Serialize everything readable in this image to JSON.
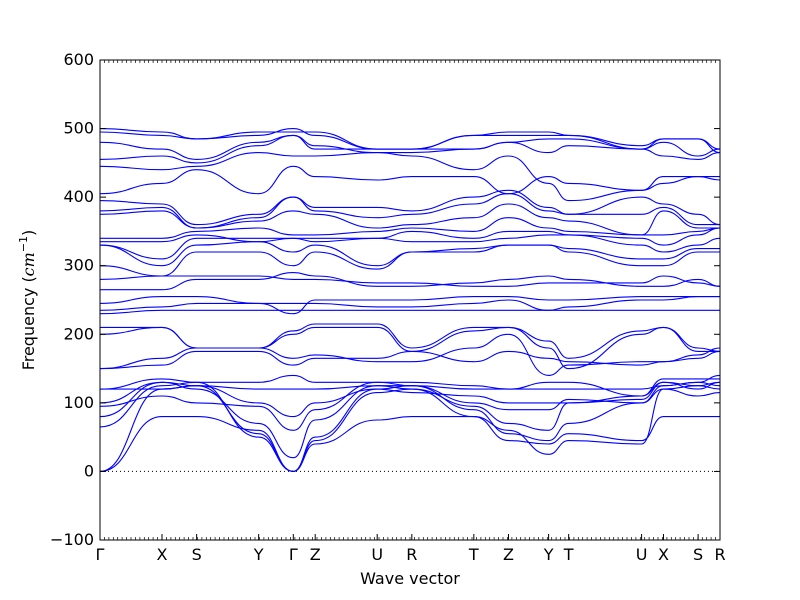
{
  "chart_data": {
    "type": "line",
    "xlabel": "Wave vector",
    "ylabel": "Frequency (cm⁻¹)",
    "ylabel_parts": {
      "text": "Frequency (",
      "unit": "cm",
      "exp": "−1",
      "close": ")"
    },
    "ylim": [
      -100,
      600
    ],
    "yticks": [
      -100,
      0,
      100,
      200,
      300,
      400,
      500,
      600
    ],
    "xlim": [
      0,
      17
    ],
    "high_symmetry_points": [
      {
        "label": "Γ",
        "x": 0
      },
      {
        "label": "X",
        "x": 1.7
      },
      {
        "label": "S",
        "x": 2.65
      },
      {
        "label": "Y",
        "x": 4.35
      },
      {
        "label": "Γ",
        "x": 5.3
      },
      {
        "label": "Z",
        "x": 5.9
      },
      {
        "label": "U",
        "x": 7.6
      },
      {
        "label": "R",
        "x": 8.55
      },
      {
        "label": "T",
        "x": 10.25
      },
      {
        "label": "Z",
        "x": 11.2
      },
      {
        "label": "Y",
        "x": 12.3
      },
      {
        "label": "T",
        "x": 12.85
      },
      {
        "label": "U",
        "x": 14.85
      },
      {
        "label": "X",
        "x": 15.45
      },
      {
        "label": "S",
        "x": 16.4
      },
      {
        "label": "R",
        "x": 17
      }
    ],
    "zero_line": 0,
    "line_color": "#0000ff",
    "series": [
      {
        "values": [
          0,
          80,
          80,
          60,
          0,
          40,
          75,
          80,
          80,
          45,
          40,
          55,
          45,
          80,
          80,
          80
        ]
      },
      {
        "values": [
          0,
          120,
          125,
          55,
          0,
          45,
          115,
          120,
          80,
          60,
          25,
          45,
          40,
          120,
          125,
          120
        ]
      },
      {
        "values": [
          65,
          125,
          130,
          50,
          0,
          50,
          120,
          125,
          90,
          55,
          45,
          70,
          100,
          125,
          130,
          125
        ]
      },
      {
        "values": [
          80,
          130,
          120,
          70,
          20,
          75,
          125,
          120,
          95,
          70,
          60,
          100,
          110,
          130,
          120,
          130
        ]
      },
      {
        "values": [
          95,
          110,
          100,
          95,
          60,
          90,
          130,
          125,
          100,
          90,
          90,
          105,
          100,
          120,
          110,
          115
        ]
      },
      {
        "values": [
          100,
          130,
          125,
          100,
          80,
          100,
          120,
          115,
          110,
          100,
          100,
          100,
          105,
          130,
          125,
          130
        ]
      },
      {
        "values": [
          120,
          120,
          125,
          120,
          120,
          120,
          125,
          125,
          120,
          120,
          120,
          120,
          120,
          125,
          130,
          140
        ]
      },
      {
        "values": [
          120,
          135,
          130,
          130,
          140,
          130,
          130,
          130,
          125,
          120,
          130,
          130,
          110,
          135,
          135,
          135
        ]
      },
      {
        "values": [
          150,
          155,
          175,
          175,
          155,
          165,
          165,
          175,
          160,
          175,
          165,
          160,
          155,
          160,
          165,
          175
        ]
      },
      {
        "values": [
          150,
          165,
          180,
          180,
          165,
          170,
          160,
          160,
          180,
          200,
          140,
          155,
          160,
          160,
          170,
          180
        ]
      },
      {
        "values": [
          200,
          210,
          180,
          180,
          200,
          210,
          210,
          175,
          205,
          210,
          180,
          150,
          200,
          210,
          175,
          175
        ]
      },
      {
        "values": [
          210,
          210,
          180,
          180,
          205,
          215,
          215,
          180,
          210,
          210,
          190,
          165,
          205,
          210,
          180,
          175
        ]
      },
      {
        "values": [
          230,
          235,
          235,
          235,
          235,
          235,
          235,
          235,
          235,
          235,
          235,
          235,
          235,
          235,
          235,
          235
        ]
      },
      {
        "values": [
          235,
          240,
          245,
          245,
          245,
          245,
          240,
          240,
          245,
          250,
          235,
          240,
          250,
          250,
          255,
          255
        ]
      },
      {
        "values": [
          245,
          255,
          255,
          245,
          230,
          250,
          250,
          250,
          255,
          255,
          250,
          250,
          255,
          255,
          255,
          255
        ]
      },
      {
        "values": [
          265,
          265,
          280,
          280,
          290,
          285,
          270,
          270,
          275,
          280,
          285,
          280,
          270,
          270,
          280,
          270
        ]
      },
      {
        "values": [
          280,
          285,
          285,
          285,
          280,
          280,
          275,
          275,
          270,
          270,
          275,
          275,
          275,
          285,
          275,
          270
        ]
      },
      {
        "values": [
          300,
          285,
          320,
          320,
          300,
          320,
          295,
          320,
          325,
          330,
          330,
          320,
          300,
          300,
          320,
          320
        ]
      },
      {
        "values": [
          330,
          300,
          330,
          335,
          320,
          330,
          300,
          320,
          320,
          330,
          330,
          325,
          310,
          310,
          325,
          325
        ]
      },
      {
        "values": [
          330,
          310,
          340,
          340,
          340,
          340,
          340,
          335,
          335,
          340,
          345,
          345,
          330,
          320,
          330,
          340
        ]
      },
      {
        "values": [
          335,
          335,
          345,
          335,
          340,
          335,
          340,
          350,
          340,
          350,
          350,
          345,
          340,
          330,
          345,
          355
        ]
      },
      {
        "values": [
          340,
          340,
          350,
          355,
          345,
          345,
          350,
          355,
          350,
          370,
          355,
          350,
          345,
          345,
          350,
          355
        ]
      },
      {
        "values": [
          375,
          380,
          355,
          365,
          380,
          375,
          355,
          360,
          370,
          390,
          370,
          365,
          345,
          380,
          355,
          355
        ]
      },
      {
        "values": [
          380,
          385,
          355,
          370,
          400,
          380,
          370,
          375,
          390,
          405,
          380,
          375,
          375,
          385,
          360,
          360
        ]
      },
      {
        "values": [
          395,
          390,
          360,
          375,
          400,
          385,
          385,
          380,
          400,
          410,
          385,
          375,
          400,
          390,
          375,
          360
        ]
      },
      {
        "values": [
          405,
          420,
          440,
          405,
          445,
          430,
          425,
          430,
          430,
          405,
          430,
          420,
          410,
          420,
          430,
          425
        ]
      },
      {
        "values": [
          445,
          440,
          445,
          465,
          460,
          460,
          465,
          460,
          440,
          460,
          420,
          395,
          410,
          430,
          430,
          430
        ]
      },
      {
        "values": [
          455,
          460,
          450,
          475,
          490,
          475,
          465,
          465,
          470,
          480,
          465,
          475,
          470,
          460,
          455,
          465
        ]
      },
      {
        "values": [
          480,
          470,
          455,
          480,
          490,
          470,
          470,
          470,
          470,
          480,
          485,
          485,
          470,
          480,
          460,
          470
        ]
      },
      {
        "values": [
          495,
          490,
          485,
          490,
          500,
          490,
          470,
          470,
          490,
          495,
          495,
          490,
          470,
          485,
          485,
          470
        ]
      },
      {
        "values": [
          500,
          495,
          485,
          495,
          495,
          495,
          470,
          470,
          490,
          490,
          490,
          490,
          475,
          485,
          485,
          465
        ]
      }
    ]
  }
}
